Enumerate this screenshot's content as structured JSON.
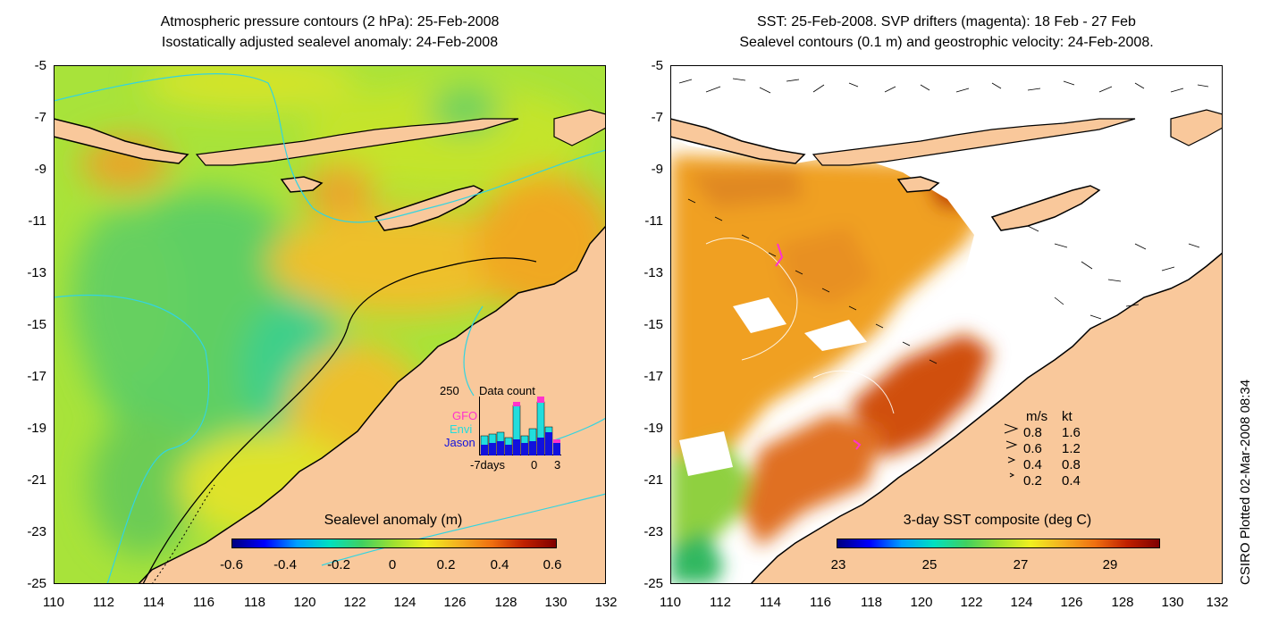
{
  "left_panel": {
    "title_line1": "Atmospheric pressure contours (2 hPa): 25-Feb-2008",
    "title_line2": "Isostatically adjusted sealevel anomaly: 24-Feb-2008",
    "y_ticks": [
      "-5",
      "-7",
      "-9",
      "-11",
      "-13",
      "-15",
      "-17",
      "-19",
      "-21",
      "-23",
      "-25"
    ],
    "x_ticks": [
      "110",
      "112",
      "114",
      "116",
      "118",
      "120",
      "122",
      "124",
      "126",
      "128",
      "130",
      "132"
    ],
    "colorbar": {
      "title": "Sealevel anomaly (m)",
      "labels": [
        "-0.6",
        "-0.4",
        "-0.2",
        "0",
        "0.2",
        "0.4",
        "0.6"
      ]
    },
    "data_count_inset": {
      "title": "Data count",
      "max_label": "250",
      "legend": [
        {
          "label": "GFO",
          "color": "#ff33cc"
        },
        {
          "label": "Envi",
          "color": "#22dddd"
        },
        {
          "label": "Jason",
          "color": "#1111dd"
        }
      ],
      "x_labels": [
        "-7days",
        "0",
        "3"
      ]
    }
  },
  "right_panel": {
    "title_line1": "SST: 25-Feb-2008. SVP drifters (magenta): 18 Feb - 27 Feb",
    "title_line2": "Sealevel contours (0.1 m) and geostrophic velocity: 24-Feb-2008.",
    "y_ticks": [
      "-5",
      "-7",
      "-9",
      "-11",
      "-13",
      "-15",
      "-17",
      "-19",
      "-21",
      "-23",
      "-25"
    ],
    "x_ticks": [
      "110",
      "112",
      "114",
      "116",
      "118",
      "120",
      "122",
      "124",
      "126",
      "128",
      "130",
      "132"
    ],
    "colorbar": {
      "title": "3-day SST composite (deg C)",
      "labels": [
        "23",
        "25",
        "27",
        "29"
      ]
    },
    "velocity_key": {
      "header_ms": "m/s",
      "header_kt": "kt",
      "rows": [
        {
          "ms": "0.8",
          "kt": "1.6"
        },
        {
          "ms": "0.6",
          "kt": "1.2"
        },
        {
          "ms": "0.4",
          "kt": "0.8"
        },
        {
          "ms": "0.2",
          "kt": "0.4"
        }
      ]
    }
  },
  "credit": "CSIRO Plotted 02-Mar-2008 08:34",
  "colors": {
    "land": "#f9c89b",
    "ocean_green": "#8fdc3c",
    "ocean_orange": "#f4a51f"
  }
}
